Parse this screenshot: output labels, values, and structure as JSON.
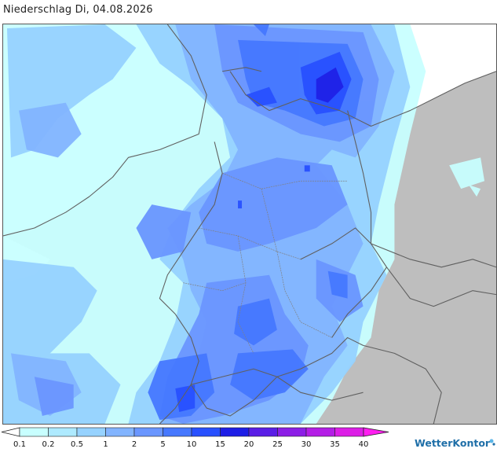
{
  "title": "Niederschlag Di, 04.08.2026",
  "legend": {
    "labels": [
      "0.1",
      "0.2",
      "0.5",
      "1",
      "2",
      "5",
      "10",
      "15",
      "20",
      "25",
      "30",
      "35",
      "40"
    ],
    "colors": [
      "#c8ffff",
      "#aeeaff",
      "#96d2ff",
      "#82b4ff",
      "#6a96ff",
      "#4678ff",
      "#2850ff",
      "#1e1ee6",
      "#5a1ee6",
      "#8c1ee6",
      "#b41ee6",
      "#dc1ee6",
      "#ff1ef0"
    ]
  },
  "colors": {
    "land": "#bebebe",
    "sea": "#ffffff",
    "border": "#606060"
  },
  "brand": {
    "name": "WetterKontor"
  }
}
